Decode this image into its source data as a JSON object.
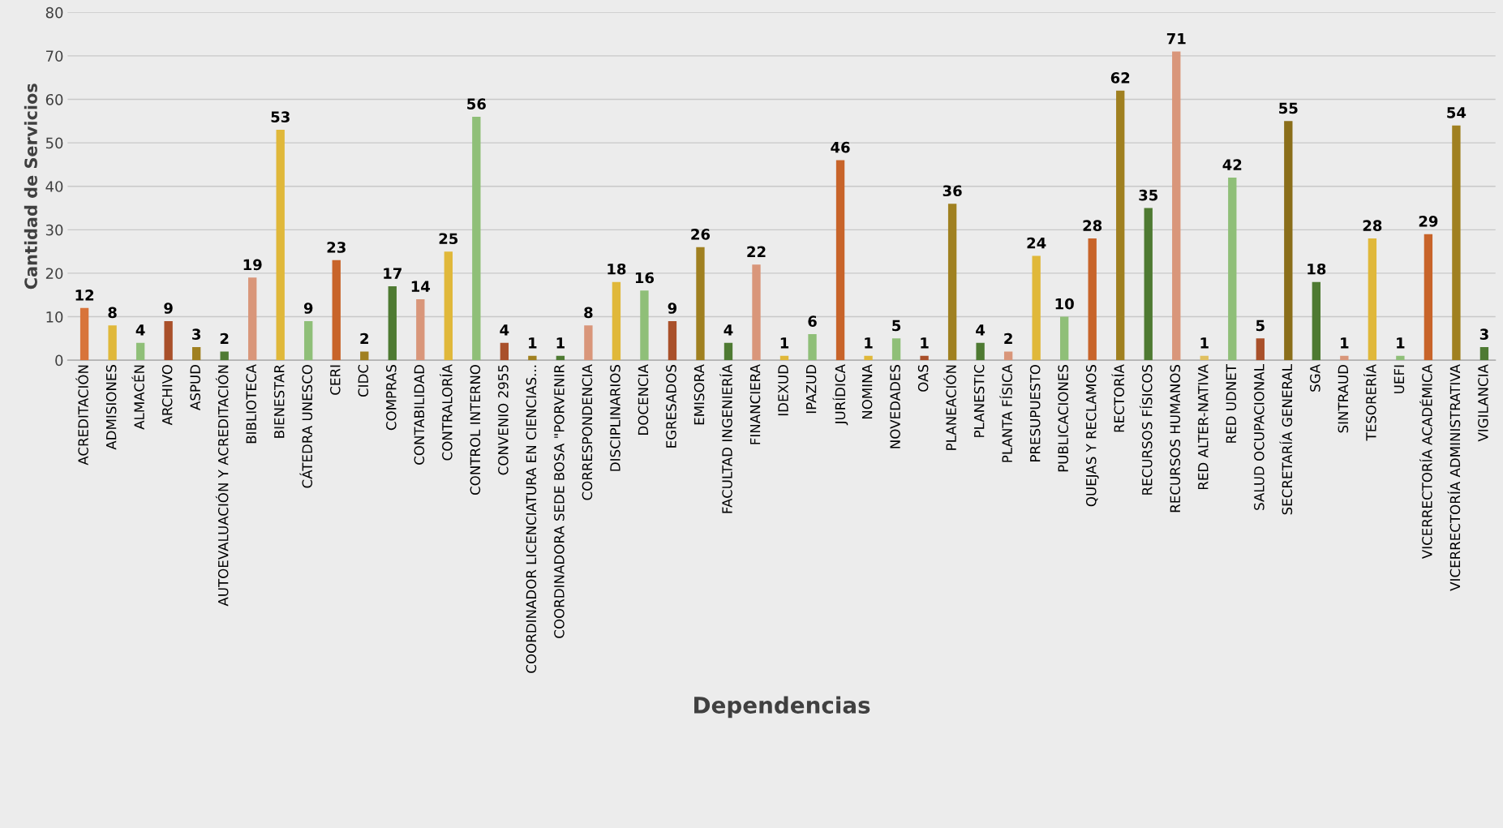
{
  "chart_data": {
    "type": "bar",
    "xlabel": "Dependencias",
    "ylabel": "Cantidad de Servicios",
    "categories": [
      "ACREDITACIÓN",
      "ADMISIONES",
      "ALMACÉN",
      "ARCHIVO",
      "ASPUD",
      "AUTOEVALUACIÓN Y ACREDITACIÓN",
      "BIBLIOTECA",
      "BIENESTAR",
      "CÁTEDRA UNESCO",
      "CERI",
      "CIDC",
      "COMPRAS",
      "CONTABILIDAD",
      "CONTRALORÍA",
      "CONTROL INTERNO",
      "CONVENIO 2955",
      "COORDINADOR LICENCIATURA EN CIENCIAS...",
      "COORDINADORA SEDE BOSA \"PORVENIR",
      "CORRESPONDENCIA",
      "DISCIPLINARIOS",
      "DOCENCIA",
      "EGRESADOS",
      "EMISORA",
      "FACULTAD INGENIERÍA",
      "FINANCIERA",
      "IDEXUD",
      "IPAZUD",
      "JURÍDICA",
      "NOMINA",
      "NOVEDADES",
      "OAS",
      "PLANEACIÓN",
      "PLANESTIC",
      "PLANTA FÍSICA",
      "PRESUPUESTO",
      "PUBLICACIONES",
      "QUEJAS Y RECLAMOS",
      "RECTORÍA",
      "RECURSOS FÍSICOS",
      "RECURSOS HUMANOS",
      "RED ALTER-NATIVA",
      "RED UDNET",
      "SALUD OCUPACIONAL",
      "SECRETARÍA GENERAL",
      "SGA",
      "SINTRAUD",
      "TESORERÍA",
      "UEFI",
      "VICERRECTORÍA ACADÉMICA",
      "VICERRECTORÍA ADMINISTRATIVA",
      "VIGILANCIA"
    ],
    "values": [
      12,
      8,
      4,
      9,
      3,
      2,
      19,
      53,
      9,
      23,
      2,
      17,
      14,
      25,
      56,
      4,
      1,
      1,
      8,
      18,
      16,
      9,
      26,
      4,
      22,
      1,
      6,
      46,
      1,
      5,
      1,
      36,
      4,
      2,
      24,
      10,
      28,
      62,
      35,
      71,
      1,
      42,
      5,
      55,
      18,
      1,
      28,
      1,
      29,
      54,
      3
    ],
    "colors": [
      "#d8743a",
      "#e0b83a",
      "#8fbf78",
      "#a9502a",
      "#a08020",
      "#4e7a32",
      "#d9967a",
      "#e0b83a",
      "#8fbf78",
      "#c8642a",
      "#a08020",
      "#4e7a32",
      "#d9967a",
      "#e0b83a",
      "#8fbf78",
      "#a9502a",
      "#a08020",
      "#4e7a32",
      "#d9967a",
      "#e0b83a",
      "#8fbf78",
      "#a9502a",
      "#a08020",
      "#4e7a32",
      "#d9967a",
      "#e0b83a",
      "#8fbf78",
      "#c8642a",
      "#e0b83a",
      "#8fbf78",
      "#a9502a",
      "#a08020",
      "#4e7a32",
      "#d9967a",
      "#e0b83a",
      "#8fbf78",
      "#c8642a",
      "#a08020",
      "#4e7a32",
      "#d9967a",
      "#e0c060",
      "#8fbf78",
      "#a9502a",
      "#8a6e1a",
      "#4e7a32",
      "#d9967a",
      "#e0b83a",
      "#8fbf78",
      "#c8642a",
      "#a08020",
      "#4e7a32"
    ],
    "ylim": [
      0,
      80
    ],
    "yticks": [
      0,
      10,
      20,
      30,
      40,
      50,
      60,
      70,
      80
    ],
    "grid": "y",
    "data_labels": true
  }
}
